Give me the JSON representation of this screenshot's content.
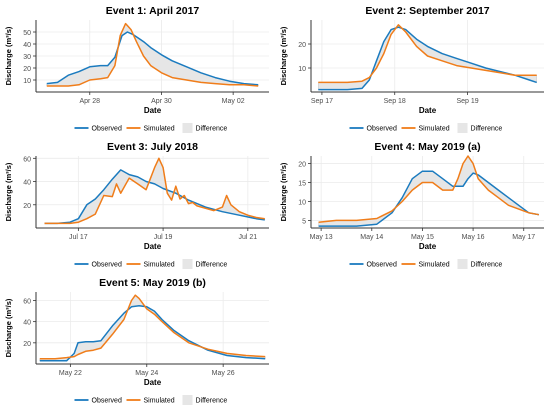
{
  "colors": {
    "observed": "#1b7bbf",
    "simulated": "#f07d1a",
    "difference": "#e6e6e6",
    "grid": "#ebebeb",
    "axis": "#333333"
  },
  "legend": {
    "observed": "Observed",
    "simulated": "Simulated",
    "difference": "Difference"
  },
  "chart_data": [
    {
      "type": "line",
      "title": "Event 1: April 2017",
      "xlabel": "Date",
      "ylabel": "Discharge (m³/s)",
      "ylim": [
        0,
        60
      ],
      "xlim": [
        0,
        6.5
      ],
      "xticks": [
        {
          "x": 1.5,
          "label": "Apr 28"
        },
        {
          "x": 3.5,
          "label": "Apr 30"
        },
        {
          "x": 5.5,
          "label": "May 02"
        }
      ],
      "yticks": [
        {
          "y": 10,
          "label": "10"
        },
        {
          "y": 20,
          "label": "20"
        },
        {
          "y": 30,
          "label": "30"
        },
        {
          "y": 40,
          "label": "40"
        },
        {
          "y": 50,
          "label": "50"
        }
      ],
      "legend_position": "bottom",
      "grid": true,
      "series": [
        {
          "name": "Observed",
          "x": [
            0.3,
            0.6,
            0.9,
            1.2,
            1.5,
            1.8,
            2.0,
            2.2,
            2.4,
            2.55,
            2.7,
            2.85,
            3.0,
            3.2,
            3.5,
            3.8,
            4.2,
            4.6,
            5.0,
            5.4,
            5.8,
            6.2
          ],
          "y": [
            7,
            8,
            14,
            17,
            21,
            22,
            22,
            29,
            47,
            50,
            48,
            45,
            42,
            37,
            31,
            26,
            21,
            16,
            12,
            9,
            7,
            6
          ]
        },
        {
          "name": "Simulated",
          "x": [
            0.3,
            0.6,
            0.9,
            1.2,
            1.5,
            1.8,
            2.0,
            2.2,
            2.35,
            2.5,
            2.65,
            2.8,
            3.0,
            3.2,
            3.5,
            3.8,
            4.2,
            4.6,
            5.0,
            5.4,
            5.8,
            6.2
          ],
          "y": [
            5,
            5,
            5,
            6,
            10,
            11,
            12,
            22,
            47,
            57,
            52,
            42,
            30,
            22,
            16,
            12,
            10,
            8,
            7,
            6,
            6,
            5
          ]
        }
      ]
    },
    {
      "type": "line",
      "title": "Event 2: September 2017",
      "xlabel": "Date",
      "ylabel": "Discharge (m³/s)",
      "ylim": [
        0,
        30
      ],
      "xlim": [
        0,
        3.2
      ],
      "xticks": [
        {
          "x": 0.15,
          "label": "Sep 17"
        },
        {
          "x": 1.15,
          "label": "Sep 18"
        },
        {
          "x": 2.15,
          "label": "Sep 19"
        }
      ],
      "yticks": [
        {
          "y": 10,
          "label": "10"
        },
        {
          "y": 20,
          "label": "20"
        }
      ],
      "legend_position": "bottom",
      "grid": true,
      "series": [
        {
          "name": "Observed",
          "x": [
            0.1,
            0.3,
            0.5,
            0.7,
            0.8,
            0.9,
            1.0,
            1.1,
            1.2,
            1.3,
            1.45,
            1.6,
            1.8,
            2.0,
            2.2,
            2.4,
            2.6,
            2.8,
            3.0,
            3.1
          ],
          "y": [
            1,
            1,
            1,
            1.5,
            5,
            13,
            21,
            26,
            27,
            26,
            22,
            19,
            16,
            14,
            12,
            10,
            8.5,
            7,
            5,
            4
          ]
        },
        {
          "name": "Simulated",
          "x": [
            0.1,
            0.3,
            0.5,
            0.7,
            0.8,
            0.9,
            1.0,
            1.1,
            1.2,
            1.3,
            1.45,
            1.6,
            1.8,
            2.0,
            2.2,
            2.4,
            2.6,
            2.8,
            3.0,
            3.1
          ],
          "y": [
            4,
            4,
            4,
            4.5,
            6,
            10,
            16,
            24,
            28,
            25,
            19,
            15,
            13,
            11,
            10,
            9,
            8,
            7,
            7,
            7
          ]
        }
      ]
    },
    {
      "type": "line",
      "title": "Event 3: July 2018",
      "xlabel": "Date",
      "ylabel": "Discharge (m³/s)",
      "ylim": [
        0,
        62
      ],
      "xlim": [
        0,
        5.5
      ],
      "xticks": [
        {
          "x": 1.0,
          "label": "Jul 17"
        },
        {
          "x": 3.0,
          "label": "Jul 19"
        },
        {
          "x": 5.0,
          "label": "Jul 21"
        }
      ],
      "yticks": [
        {
          "y": 20,
          "label": "20"
        },
        {
          "y": 40,
          "label": "40"
        },
        {
          "y": 60,
          "label": "60"
        }
      ],
      "legend_position": "bottom",
      "grid": true,
      "series": [
        {
          "name": "Observed",
          "x": [
            0.2,
            0.5,
            0.8,
            1.0,
            1.2,
            1.4,
            1.6,
            1.8,
            2.0,
            2.2,
            2.4,
            2.6,
            2.8,
            3.0,
            3.3,
            3.6,
            4.0,
            4.4,
            4.8,
            5.2,
            5.4
          ],
          "y": [
            4,
            4,
            5,
            8,
            20,
            25,
            33,
            42,
            50,
            46,
            44,
            40,
            38,
            34,
            30,
            24,
            18,
            14,
            11,
            8,
            7
          ]
        },
        {
          "name": "Simulated",
          "x": [
            0.2,
            0.5,
            0.8,
            1.0,
            1.2,
            1.4,
            1.6,
            1.8,
            1.9,
            2.0,
            2.2,
            2.4,
            2.6,
            2.8,
            2.9,
            3.0,
            3.1,
            3.2,
            3.3,
            3.4,
            3.5,
            3.6,
            3.7,
            3.8,
            4.0,
            4.2,
            4.4,
            4.5,
            4.6,
            4.8,
            5.0,
            5.2,
            5.4
          ],
          "y": [
            4,
            4,
            4,
            5,
            8,
            12,
            28,
            27,
            38,
            30,
            43,
            38,
            33,
            52,
            60,
            52,
            30,
            24,
            36,
            25,
            28,
            21,
            22,
            19,
            17,
            15,
            18,
            28,
            20,
            14,
            11,
            9,
            8
          ]
        }
      ]
    },
    {
      "type": "line",
      "title": "Event 4: May 2019 (a)",
      "xlabel": "Date",
      "ylabel": "Discharge (m³/s)",
      "ylim": [
        3,
        22
      ],
      "xlim": [
        0,
        4.6
      ],
      "xticks": [
        {
          "x": 0.2,
          "label": "May 13"
        },
        {
          "x": 1.2,
          "label": "May 14"
        },
        {
          "x": 2.2,
          "label": "May 15"
        },
        {
          "x": 3.2,
          "label": "May 16"
        },
        {
          "x": 4.2,
          "label": "May 17"
        }
      ],
      "yticks": [
        {
          "y": 5,
          "label": "5"
        },
        {
          "y": 10,
          "label": "10"
        },
        {
          "y": 15,
          "label": "15"
        },
        {
          "y": 20,
          "label": "20"
        }
      ],
      "legend_position": "bottom",
      "grid": true,
      "series": [
        {
          "name": "Observed",
          "x": [
            0.15,
            0.5,
            0.9,
            1.3,
            1.6,
            1.8,
            2.0,
            2.2,
            2.4,
            2.6,
            2.8,
            3.0,
            3.1,
            3.2,
            3.3,
            3.5,
            3.7,
            3.9,
            4.1,
            4.3,
            4.5
          ],
          "y": [
            3.5,
            3.5,
            3.5,
            4,
            7,
            11,
            16,
            18,
            18,
            16,
            14,
            14,
            16,
            17.5,
            17,
            15,
            13,
            11,
            9,
            7,
            6.5
          ]
        },
        {
          "name": "Simulated",
          "x": [
            0.15,
            0.5,
            0.9,
            1.3,
            1.6,
            1.8,
            2.0,
            2.2,
            2.4,
            2.6,
            2.8,
            2.9,
            3.0,
            3.1,
            3.2,
            3.3,
            3.5,
            3.7,
            3.9,
            4.1,
            4.3,
            4.5
          ],
          "y": [
            4.5,
            5,
            5,
            5.5,
            7.5,
            10,
            13,
            15,
            15,
            13,
            13,
            16,
            20,
            22,
            20,
            16,
            13,
            11,
            9,
            8,
            7,
            6.5
          ]
        }
      ]
    },
    {
      "type": "line",
      "title": "Event 5: May 2019 (b)",
      "xlabel": "Date",
      "ylabel": "Discharge (m³/s)",
      "ylim": [
        0,
        68
      ],
      "xlim": [
        0,
        6.1
      ],
      "xticks": [
        {
          "x": 0.9,
          "label": "May 22"
        },
        {
          "x": 2.9,
          "label": "May 24"
        },
        {
          "x": 4.9,
          "label": "May 26"
        }
      ],
      "yticks": [
        {
          "y": 20,
          "label": "20"
        },
        {
          "y": 40,
          "label": "40"
        },
        {
          "y": 60,
          "label": "60"
        }
      ],
      "legend_position": "bottom",
      "grid": true,
      "series": [
        {
          "name": "Observed",
          "x": [
            0.1,
            0.5,
            0.8,
            1.0,
            1.1,
            1.3,
            1.5,
            1.7,
            2.0,
            2.3,
            2.5,
            2.7,
            2.9,
            3.1,
            3.3,
            3.6,
            4.0,
            4.5,
            5.0,
            5.5,
            6.0
          ],
          "y": [
            3,
            3,
            3,
            10,
            20,
            21,
            21,
            22,
            36,
            48,
            54,
            55,
            54,
            50,
            42,
            32,
            22,
            13,
            8,
            6,
            5
          ]
        },
        {
          "name": "Simulated",
          "x": [
            0.1,
            0.5,
            0.8,
            1.0,
            1.1,
            1.3,
            1.5,
            1.7,
            2.0,
            2.3,
            2.5,
            2.6,
            2.7,
            2.9,
            3.1,
            3.3,
            3.6,
            4.0,
            4.5,
            5.0,
            5.5,
            6.0
          ],
          "y": [
            5,
            5,
            6,
            7,
            9,
            12,
            13,
            15,
            28,
            42,
            60,
            65,
            62,
            52,
            47,
            40,
            30,
            20,
            14,
            10,
            8,
            7
          ]
        }
      ]
    }
  ]
}
